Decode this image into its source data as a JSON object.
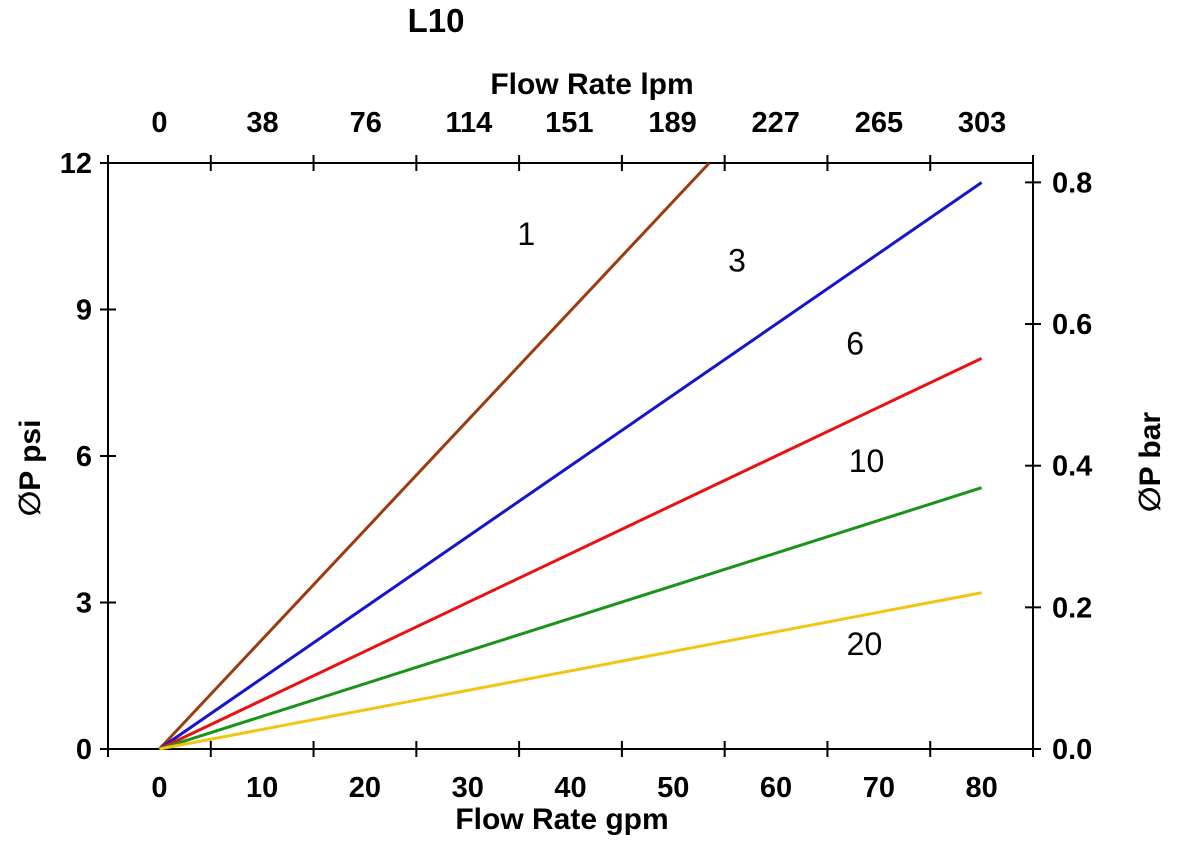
{
  "chart_data": {
    "type": "line",
    "title": "L10",
    "description": "Pressure drop vs flow rate curves for element grades 1, 3, 6, 10, 20",
    "background_color": "#FFFFFF",
    "axis_color": "#000000",
    "grid": false,
    "legend": "inline curve labels",
    "x_bottom": {
      "label": "Flow Rate gpm",
      "unit": "gpm",
      "min": -5,
      "max": 85,
      "tick_step": 10,
      "tick_labels": [
        0,
        10,
        20,
        30,
        40,
        50,
        60,
        70,
        80
      ]
    },
    "x_top": {
      "label": "Flow Rate lpm",
      "unit": "lpm",
      "tick_labels": [
        0,
        38,
        76,
        114,
        151,
        189,
        227,
        265,
        303
      ],
      "lpm_per_gpm": 3.78541
    },
    "y_left": {
      "label": "∅P psi",
      "unit": "psi",
      "min": 0,
      "max": 12,
      "tick_labels": [
        0,
        3,
        6,
        9,
        12
      ]
    },
    "y_right": {
      "label": "∅P bar",
      "unit": "bar",
      "tick_labels": [
        "0.0",
        "0.2",
        "0.4",
        "0.6",
        "0.8"
      ],
      "psi_per_bar": 14.5038
    },
    "series": [
      {
        "name": "1",
        "color": "#9C3B10",
        "points": [
          [
            0,
            0
          ],
          [
            53.5,
            12.0
          ]
        ]
      },
      {
        "name": "3",
        "color": "#1515CE",
        "points": [
          [
            0,
            0
          ],
          [
            80,
            11.6
          ]
        ]
      },
      {
        "name": "6",
        "color": "#E81212",
        "points": [
          [
            0,
            0
          ],
          [
            80,
            8.0
          ]
        ]
      },
      {
        "name": "10",
        "color": "#189418",
        "points": [
          [
            0,
            0
          ],
          [
            80,
            5.35
          ]
        ]
      },
      {
        "name": "20",
        "color": "#F2C414",
        "points": [
          [
            0,
            0
          ],
          [
            80,
            3.2
          ]
        ]
      }
    ],
    "curve_labels": [
      {
        "text": "1",
        "gpm": 35.7,
        "psi": 10.55
      },
      {
        "text": "3",
        "gpm": 56.2,
        "psi": 10.0
      },
      {
        "text": "6",
        "gpm": 67.7,
        "psi": 8.3
      },
      {
        "text": "10",
        "gpm": 68.8,
        "psi": 5.9
      },
      {
        "text": "20",
        "gpm": 68.6,
        "psi": 2.15
      }
    ]
  }
}
